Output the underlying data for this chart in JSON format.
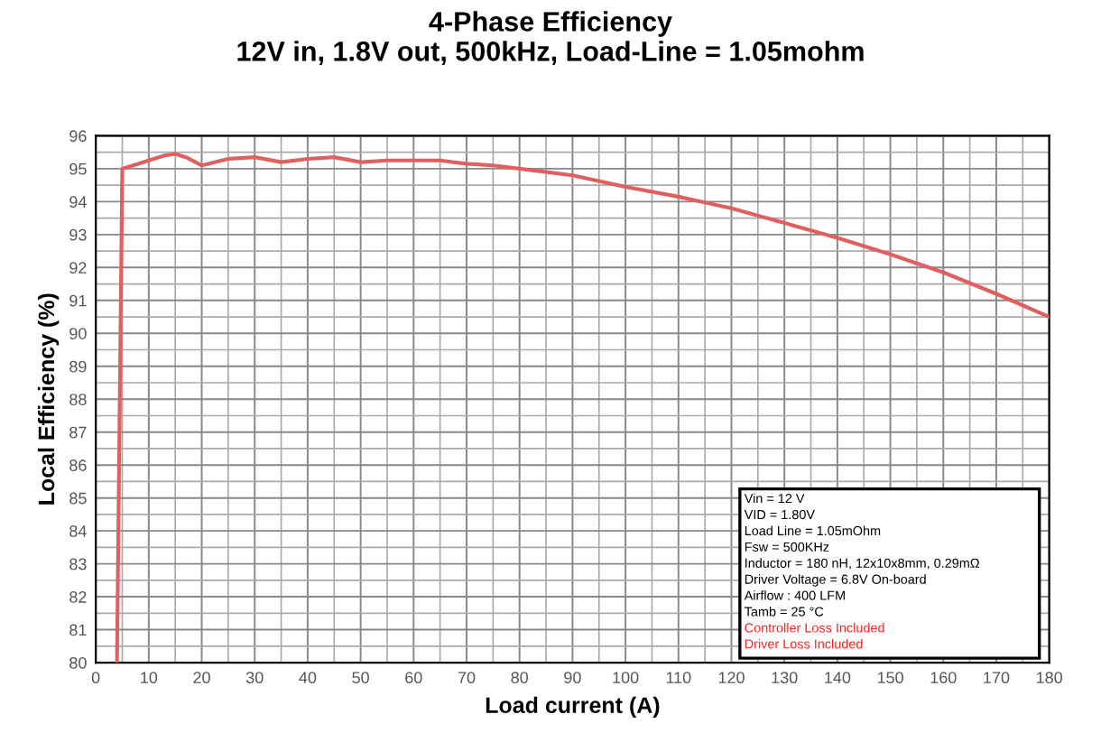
{
  "chart_data": {
    "type": "line",
    "title": "4-Phase Efficiency\n12V in, 1.8V out, 500kHz, Load-Line = 1.05mohm",
    "xlabel": "Load current (A)",
    "ylabel": "Local Efficiency (%)",
    "series": [
      {
        "color": "#e06060",
        "x": [
          4,
          5,
          8,
          10,
          13,
          15,
          17,
          20,
          25,
          30,
          35,
          40,
          45,
          50,
          55,
          60,
          65,
          70,
          75,
          80,
          90,
          100,
          110,
          120,
          130,
          140,
          150,
          160,
          170,
          180
        ],
        "values": [
          80,
          95.0,
          95.15,
          95.25,
          95.4,
          95.45,
          95.35,
          95.1,
          95.3,
          95.35,
          95.2,
          95.3,
          95.35,
          95.2,
          95.25,
          95.25,
          95.25,
          95.15,
          95.1,
          95.0,
          94.8,
          94.45,
          94.15,
          93.8,
          93.35,
          92.9,
          92.4,
          91.85,
          91.2,
          90.5
        ]
      }
    ],
    "xlim": [
      0,
      180
    ],
    "xticks": [
      0,
      10,
      20,
      30,
      40,
      50,
      60,
      70,
      80,
      90,
      100,
      110,
      120,
      130,
      140,
      150,
      160,
      170,
      180
    ],
    "ylim": [
      80,
      96
    ],
    "yticks": [
      80,
      81,
      82,
      83,
      84,
      85,
      86,
      87,
      88,
      89,
      90,
      91,
      92,
      93,
      94,
      95,
      96
    ],
    "grid": true,
    "legend": false,
    "marker": "none",
    "line_style": "solid",
    "annotations": [
      "Vin = 12 V",
      "VID = 1.80V",
      "Load Line = 1.05mOhm",
      "Fsw = 500KHz",
      "Inductor = 180 nH, 12x10x8mm, 0.29mΩ",
      "Driver Voltage = 6.8V On-board",
      "Airflow : 400 LFM",
      "Tamb = 25 °C",
      "Controller Loss Included",
      "Driver Loss Included"
    ]
  }
}
